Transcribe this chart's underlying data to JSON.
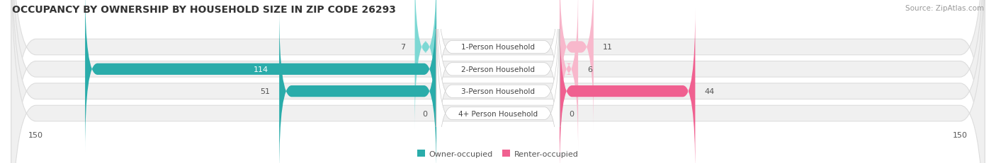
{
  "title": "OCCUPANCY BY OWNERSHIP BY HOUSEHOLD SIZE IN ZIP CODE 26293",
  "source": "Source: ZipAtlas.com",
  "categories": [
    "1-Person Household",
    "2-Person Household",
    "3-Person Household",
    "4+ Person Household"
  ],
  "owner_values": [
    7,
    114,
    51,
    0
  ],
  "renter_values": [
    11,
    6,
    44,
    0
  ],
  "xlim": 150,
  "owner_color_light": "#7DD8D4",
  "owner_color_dark": "#2AACAA",
  "renter_color_light": "#F8B8CC",
  "renter_color_dark": "#F06090",
  "row_bg_color": "#F0F0F0",
  "row_border_color": "#DDDDDD",
  "label_bg_color": "#FFFFFF",
  "title_fontsize": 10,
  "source_fontsize": 7.5,
  "bar_label_fontsize": 8,
  "legend_fontsize": 8,
  "axis_tick_fontsize": 8,
  "cat_label_fontsize": 7.5
}
